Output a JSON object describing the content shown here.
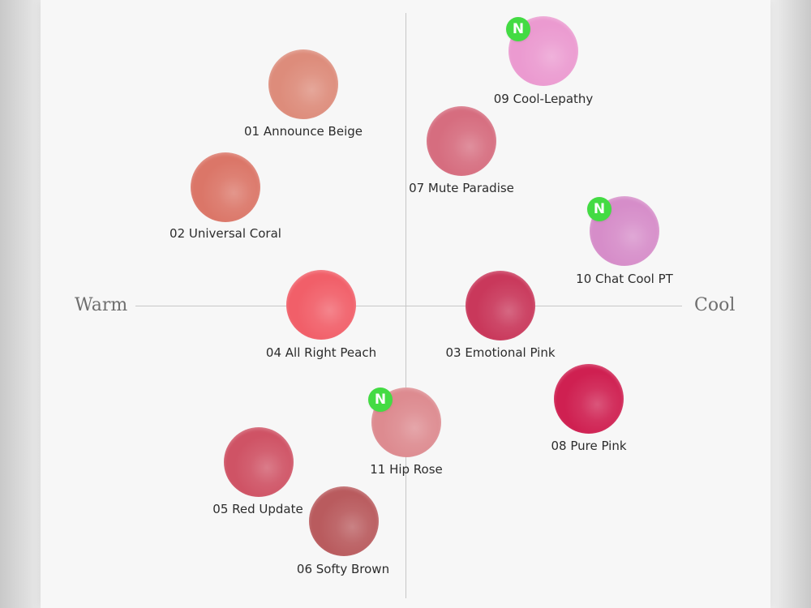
{
  "axes": {
    "warm": "Warm",
    "cool": "Cool"
  },
  "swatches": [
    {
      "label": "01 Announce Beige",
      "color": "#dd8c7b"
    },
    {
      "label": "02 Universal Coral",
      "color": "#db7668"
    },
    {
      "label": "04 All Right Peach",
      "color": "#f15f69"
    },
    {
      "label": "05 Red Update",
      "color": "#cf5365"
    },
    {
      "label": "06 Softy Brown",
      "color": "#b95b5e"
    },
    {
      "label": "11 Hip Rose",
      "color": "#dd8b90"
    },
    {
      "label": "07 Mute Paradise",
      "color": "#d66d7f"
    },
    {
      "label": "03 Emotional Pink",
      "color": "#c9385b"
    },
    {
      "label": "08 Pure Pink",
      "color": "#cf2051"
    },
    {
      "label": "09 Cool-Lepathy",
      "color": "#eb9ad0"
    },
    {
      "label": "10 Chat Cool PT",
      "color": "#d68dc9"
    }
  ],
  "badges": [
    {
      "label": "N"
    },
    {
      "label": "N"
    },
    {
      "label": "N"
    }
  ]
}
